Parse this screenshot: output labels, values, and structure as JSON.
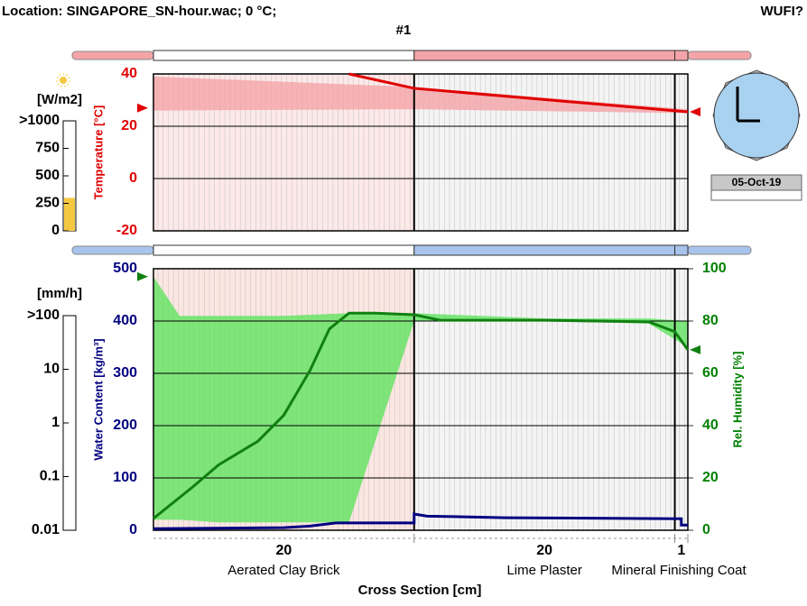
{
  "header": {
    "location": "Location: SINGAPORE_SN-hour.wac; 0 °C;",
    "app": "WUFI?",
    "run": "#1"
  },
  "date": "05-Oct-19",
  "radiation": {
    "unit": "[W/m2]",
    "lim": [
      0,
      1000
    ],
    "ticks": [
      {
        "value": 1000,
        "label": ">1000"
      },
      750,
      500,
      250,
      0
    ],
    "value": 300,
    "color": "#f5c842"
  },
  "rain": {
    "unit": "[mm/h]",
    "log": true,
    "lim": [
      0.01,
      100
    ],
    "ticks": [
      {
        "value": 100,
        "label": ">100"
      },
      10,
      1,
      0.1,
      0.01
    ]
  },
  "chart_data": [
    {
      "type": "line",
      "ylabel": "Temperature [°C]",
      "xlim": [
        0,
        41
      ],
      "ylim": [
        -20,
        40
      ],
      "yticks": [
        -20,
        0,
        20,
        40
      ],
      "tick_color": "#e00000",
      "grid": true,
      "series": [
        {
          "color": "#e00000",
          "x": [
            15,
            20,
            41
          ],
          "values": [
            40,
            34.5,
            25.5
          ]
        }
      ],
      "envelope": {
        "color": "#f4a4a8",
        "x": [
          0,
          20,
          41
        ],
        "max": [
          39,
          35,
          26.5
        ],
        "min": [
          26,
          26.5,
          25
        ]
      },
      "boundary": {
        "color": "#e00000",
        "left": 27,
        "right": 25.5
      }
    },
    {
      "type": "line",
      "ylabel": "Water Content [kg/m³]",
      "y2label": "Rel. Humidity [%]",
      "xlim": [
        0,
        41
      ],
      "ylim": [
        0,
        500
      ],
      "yticks": [
        0,
        100,
        200,
        300,
        400,
        500
      ],
      "tick_color": "#000080",
      "y2lim": [
        0,
        100
      ],
      "y2ticks": [
        0,
        20,
        40,
        60,
        80,
        100
      ],
      "tick2_color": "#008000",
      "grid": true,
      "series": [
        {
          "color": "#000080",
          "x": [
            0,
            10,
            12,
            14,
            20,
            20,
            21,
            27,
            40.5,
            40.5,
            41
          ],
          "values": [
            3,
            5,
            8,
            14,
            14,
            31,
            27,
            24,
            22,
            10,
            10
          ]
        },
        {
          "color": "#108010",
          "axis": "y2",
          "x": [
            0,
            3,
            5,
            8,
            10,
            12,
            13.5,
            15,
            17,
            20,
            22,
            30,
            38,
            40,
            41
          ],
          "values": [
            4.5,
            16.5,
            25,
            34,
            44,
            61,
            77,
            83,
            83,
            82.4,
            80.3,
            80.3,
            79.7,
            75.9,
            69
          ]
        }
      ],
      "envelope": {
        "color": "#5fe35f",
        "axis": "y2",
        "x": [
          0,
          2,
          5,
          10,
          15,
          20,
          30,
          38,
          41
        ],
        "max": [
          97,
          82,
          82,
          82,
          83,
          83,
          81,
          81,
          80
        ],
        "min": [
          4,
          4,
          3,
          3,
          3,
          80,
          80,
          79,
          70
        ]
      },
      "boundary": {
        "color": "#108010",
        "axis": "y2",
        "left": 97,
        "right": 69
      }
    }
  ],
  "cross_section": {
    "title": "Cross Section [cm]",
    "layers": [
      {
        "name": "Aerated Clay Brick",
        "thickness": 20,
        "color": "#fce6e1"
      },
      {
        "name": "Lime Plaster",
        "thickness": 20,
        "color": "#f4f4f4"
      },
      {
        "name": "Mineral Finishing Coat",
        "thickness": 1,
        "color": "#f4f4f4"
      }
    ]
  }
}
